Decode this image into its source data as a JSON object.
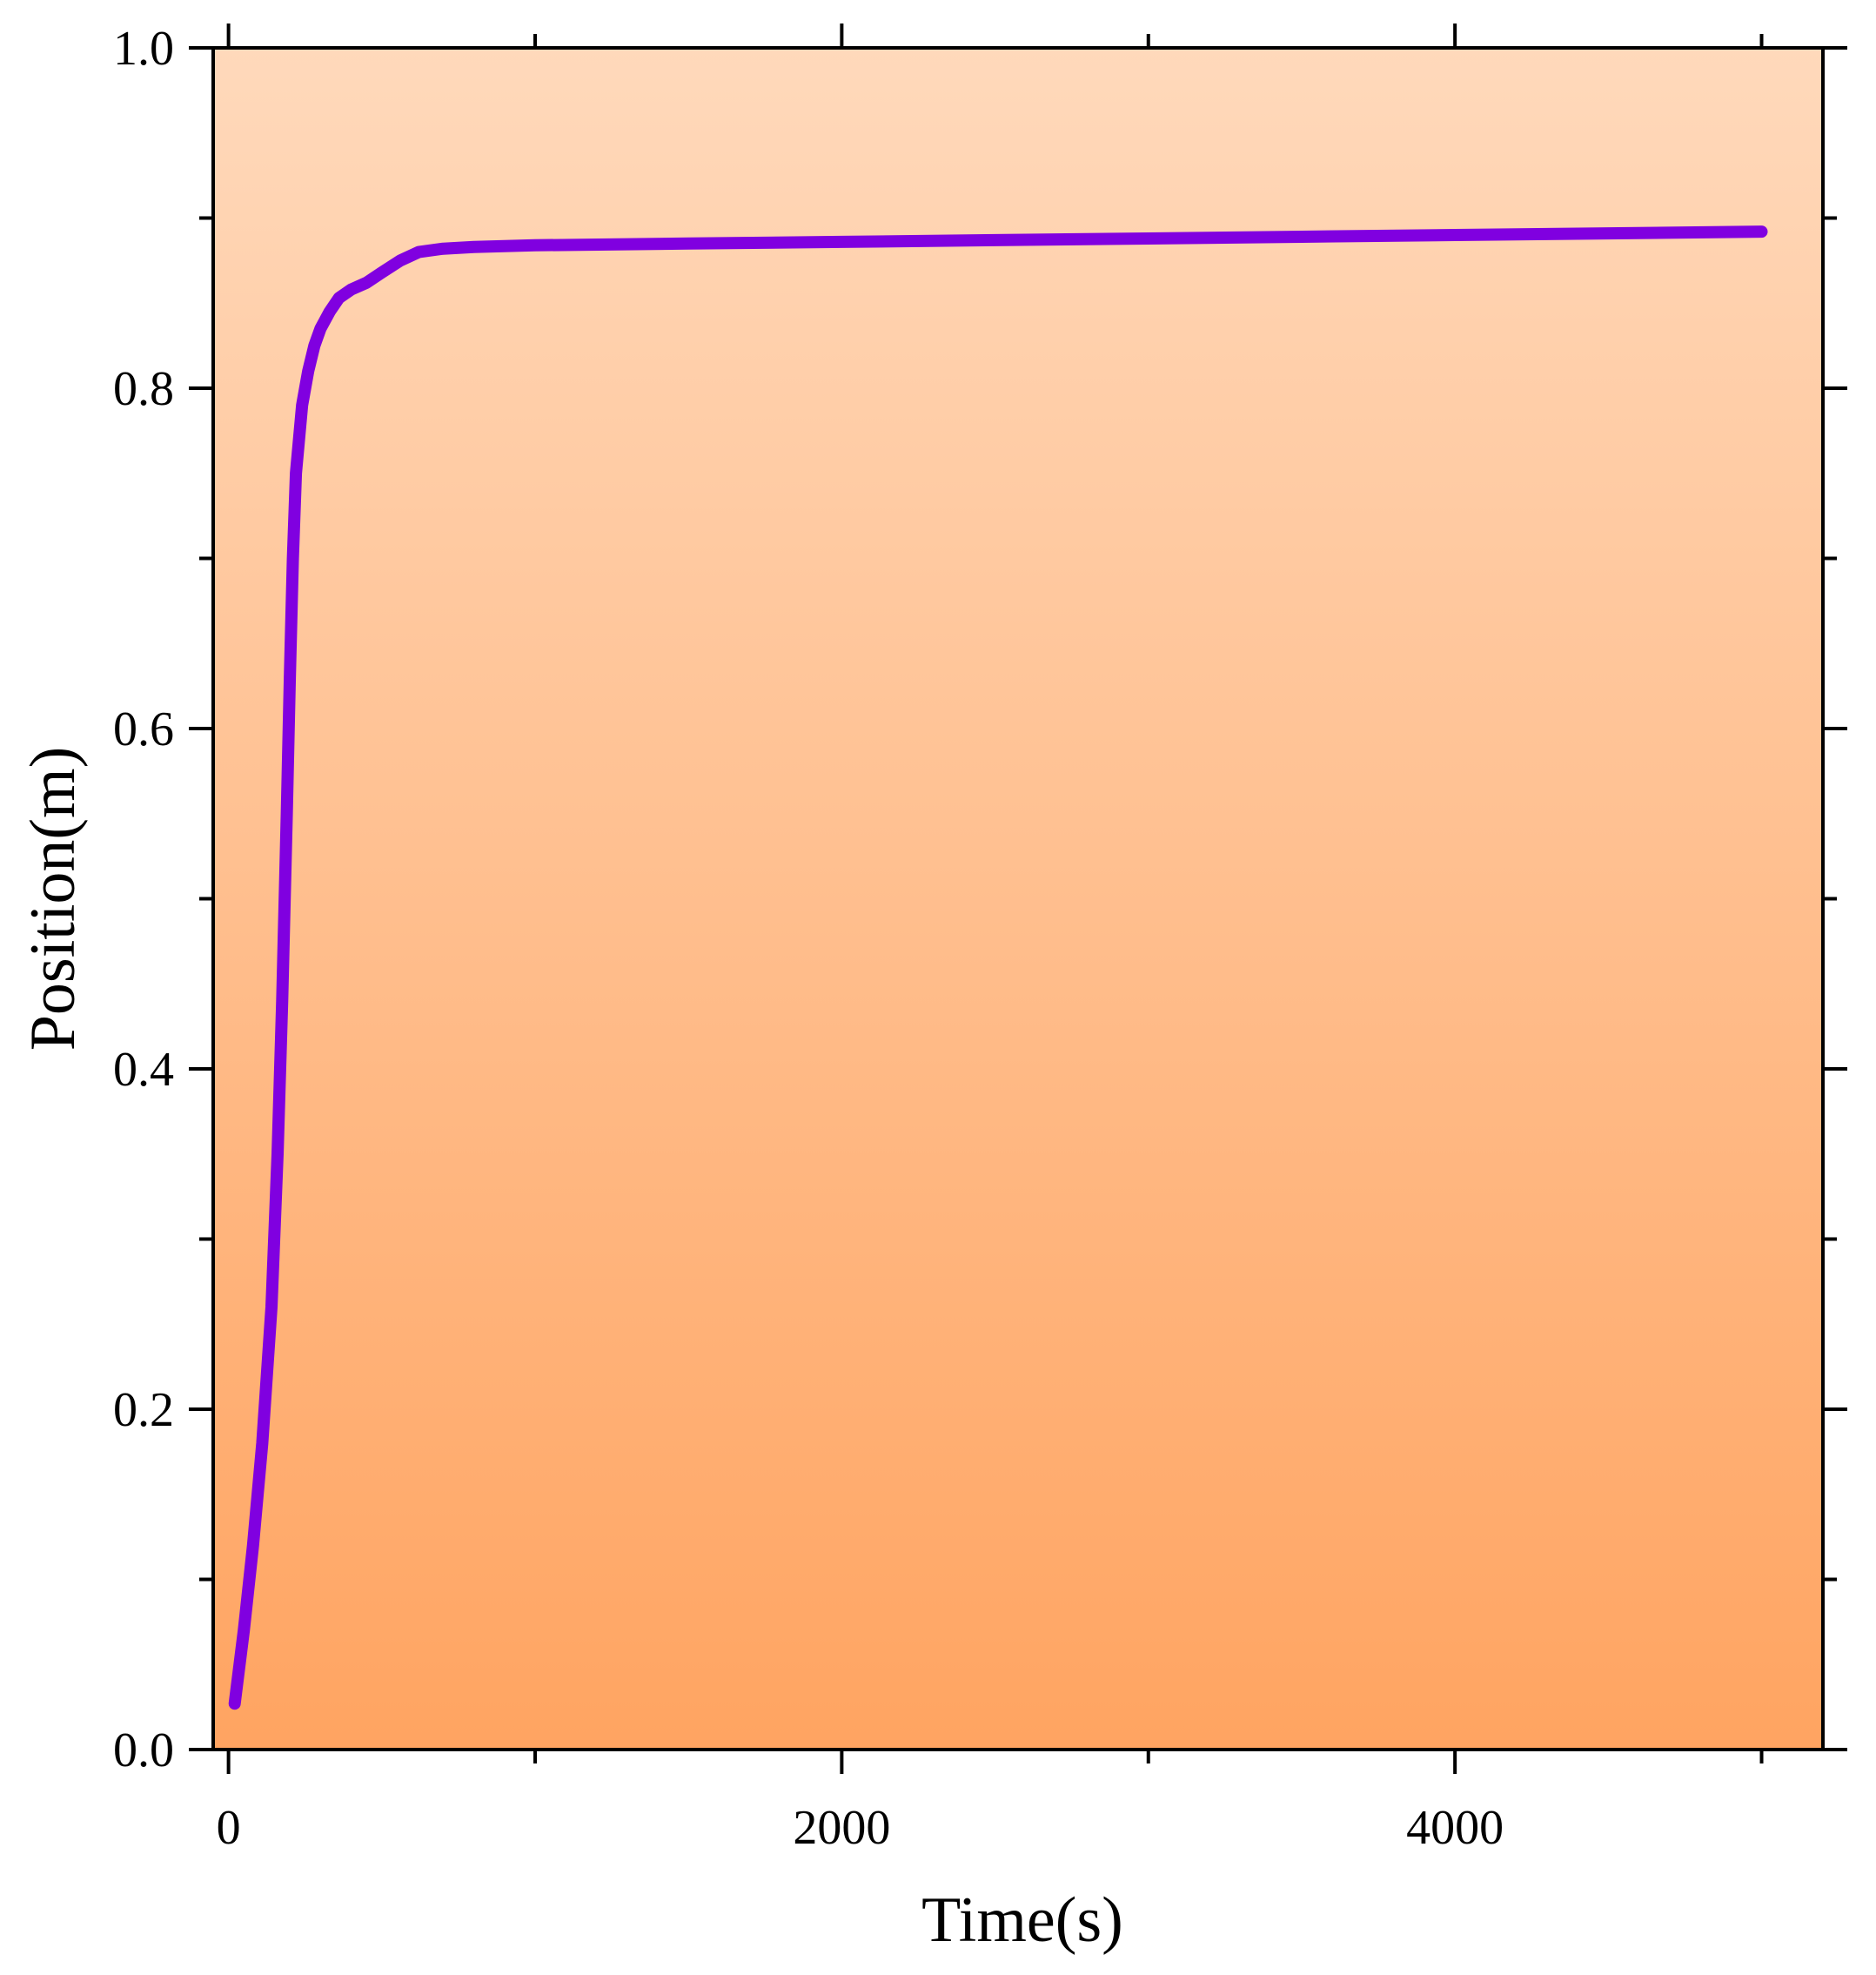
{
  "chart_data": {
    "type": "line",
    "title": "",
    "xlabel": "Time(s)",
    "ylabel": "Position(m)",
    "xlim": [
      -50,
      5200
    ],
    "ylim": [
      0.0,
      1.0
    ],
    "x_ticks": [
      0,
      2000,
      4000
    ],
    "x_tick_labels": [
      "0",
      "2000",
      "4000"
    ],
    "x_minor_ticks": [
      1000,
      3000,
      5000
    ],
    "y_ticks": [
      0.0,
      0.2,
      0.4,
      0.6,
      0.8,
      1.0
    ],
    "y_tick_labels": [
      "0.0",
      "0.2",
      "0.4",
      "0.6",
      "0.8",
      "1.0"
    ],
    "y_minor_ticks": [
      0.1,
      0.3,
      0.5,
      0.7,
      0.9
    ],
    "grid": false,
    "legend": "none",
    "background_gradient": {
      "top": "#FFD9BB",
      "bottom": "#FFA461"
    },
    "series": [
      {
        "color": "#8000E0",
        "x": [
          20,
          50,
          80,
          110,
          140,
          160,
          175,
          190,
          200,
          210,
          220,
          240,
          260,
          280,
          300,
          330,
          360,
          400,
          450,
          500,
          560,
          620,
          700,
          800,
          1000,
          1500,
          2000,
          2500,
          3000,
          3500,
          4000,
          4500,
          5000
        ],
        "y": [
          0.027,
          0.07,
          0.12,
          0.18,
          0.26,
          0.35,
          0.44,
          0.55,
          0.63,
          0.7,
          0.75,
          0.79,
          0.81,
          0.825,
          0.835,
          0.845,
          0.853,
          0.858,
          0.862,
          0.868,
          0.875,
          0.88,
          0.882,
          0.883,
          0.884,
          0.885,
          0.886,
          0.887,
          0.888,
          0.889,
          0.89,
          0.891,
          0.892
        ]
      }
    ]
  }
}
